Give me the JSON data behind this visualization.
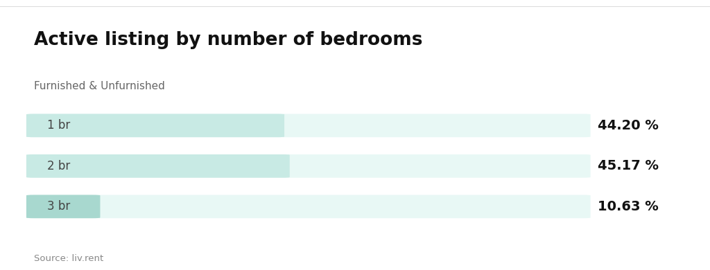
{
  "title": "Active listing by number of bedrooms",
  "subtitle": "Furnished & Unfurnished",
  "source": "Source: liv.rent",
  "categories": [
    "1 br",
    "2 br",
    "3 br"
  ],
  "values": [
    44.2,
    45.17,
    10.63
  ],
  "labels": [
    "44.20 %",
    "45.17 %",
    "10.63 %"
  ],
  "max_value": 100,
  "bar_bg_color": "#e8f8f5",
  "bar_fill_colors": [
    "#c8eae4",
    "#c8eae4",
    "#a8d8cf"
  ],
  "bar_label_color": "#444444",
  "value_label_color": "#111111",
  "background_color": "#ffffff",
  "title_color": "#111111",
  "subtitle_color": "#666666",
  "source_color": "#888888",
  "title_fontsize": 19,
  "subtitle_fontsize": 11,
  "bar_label_fontsize": 12,
  "value_label_fontsize": 14,
  "source_fontsize": 9.5,
  "bar_height": 0.55,
  "top_border_color": "#dddddd"
}
